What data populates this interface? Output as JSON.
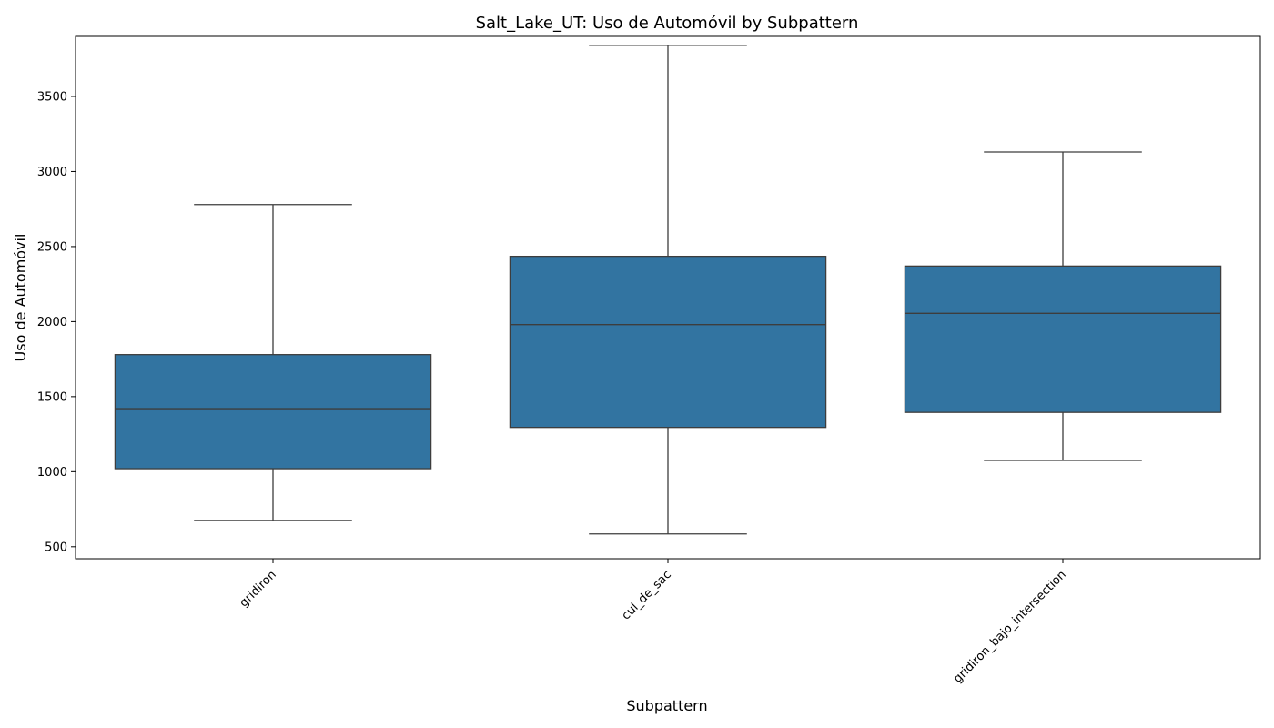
{
  "chart_data": {
    "type": "box",
    "title": "Salt_Lake_UT: Uso de Automóvil by Subpattern",
    "xlabel": "Subpattern",
    "ylabel": "Uso de Automóvil",
    "ylim": [
      420,
      3900
    ],
    "yticks": [
      500,
      1000,
      1500,
      2000,
      2500,
      3000,
      3500
    ],
    "grid": false,
    "colors": {
      "box_fill": "#3274a1",
      "line": "#3d3d3d",
      "axis": "#000000"
    },
    "categories": [
      "gridiron",
      "cul_de_sac",
      "gridiron_bajo_intersection"
    ],
    "boxes": [
      {
        "category": "gridiron",
        "whisker_low": 675,
        "q1": 1020,
        "median": 1420,
        "q3": 1780,
        "whisker_high": 2780
      },
      {
        "category": "cul_de_sac",
        "whisker_low": 585,
        "q1": 1295,
        "median": 1980,
        "q3": 2435,
        "whisker_high": 3840
      },
      {
        "category": "gridiron_bajo_intersection",
        "whisker_low": 1075,
        "q1": 1395,
        "median": 2055,
        "q3": 2370,
        "whisker_high": 3130
      }
    ]
  }
}
